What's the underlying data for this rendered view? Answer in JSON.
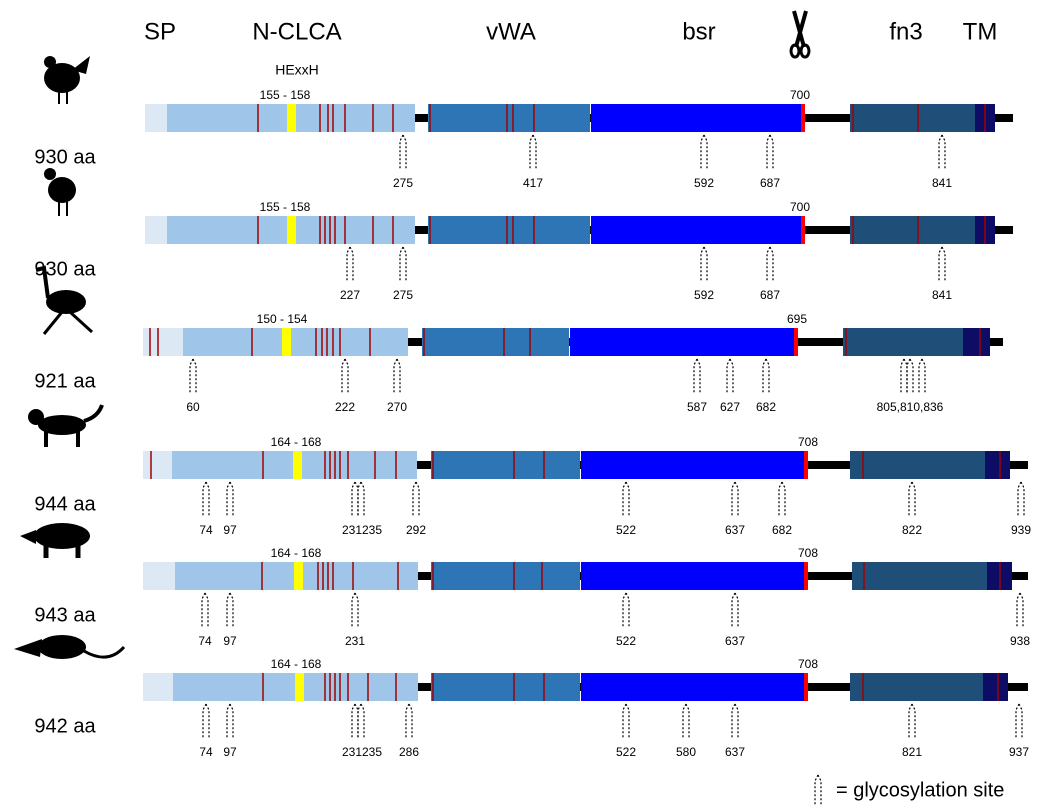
{
  "header": {
    "domains": [
      "SP",
      "N-CLCA",
      "vWA",
      "bsr",
      "fn3",
      "TM"
    ],
    "motif": "HExxH"
  },
  "rows": [
    {
      "length": "930 aa",
      "motif_range": "155 - 158",
      "cleavage": "700",
      "sites": [
        "275",
        "417",
        "592",
        "687",
        "841"
      ]
    },
    {
      "length": "930 aa",
      "motif_range": "155 - 158",
      "cleavage": "700",
      "sites": [
        "227",
        "275",
        "592",
        "687",
        "841"
      ]
    },
    {
      "length": "921 aa",
      "motif_range": "150 - 154",
      "cleavage": "695",
      "sites": [
        "60",
        "222",
        "270",
        "587",
        "627",
        "682",
        "805,810,836"
      ]
    },
    {
      "length": "944 aa",
      "motif_range": "164 - 168",
      "cleavage": "708",
      "sites": [
        "74",
        "97",
        "231",
        "235",
        "292",
        "522",
        "637",
        "682",
        "822",
        "939"
      ]
    },
    {
      "length": "943 aa",
      "motif_range": "164 - 168",
      "cleavage": "708",
      "sites": [
        "74",
        "97",
        "231",
        "522",
        "637",
        "938"
      ]
    },
    {
      "length": "942 aa",
      "motif_range": "164 - 168",
      "cleavage": "708",
      "sites": [
        "74",
        "97",
        "231",
        "235",
        "286",
        "522",
        "580",
        "637",
        "821",
        "937"
      ]
    }
  ],
  "legend": "= glycosylation site"
}
